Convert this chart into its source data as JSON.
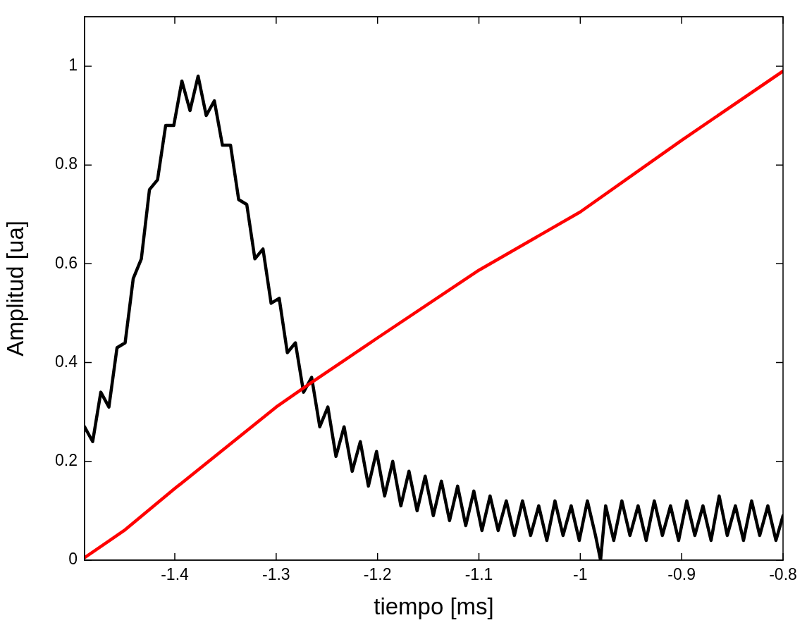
{
  "chart_data": {
    "type": "line",
    "xlabel": "tiempo [ms]",
    "ylabel": "Amplitud [ua]",
    "xlim": [
      -1.489,
      -0.8
    ],
    "xticks": [
      -1.4,
      -1.3,
      -1.2,
      -1.1,
      -1,
      -0.9,
      -0.8
    ],
    "ylim": [
      0,
      1.1
    ],
    "yticks": [
      0,
      0.2,
      0.4,
      0.6,
      0.8,
      1
    ],
    "grid": false,
    "legend": false,
    "marker": "none",
    "line_style": "solid",
    "series": [
      {
        "color": "#ff0000",
        "x": [
          -1.489,
          -1.45,
          -1.4,
          -1.3,
          -1.267,
          -1.2,
          -1.1,
          -1.0,
          -0.9,
          -0.8
        ],
        "values": [
          0.005,
          0.06,
          0.145,
          0.31,
          0.357,
          0.45,
          0.587,
          0.705,
          0.85,
          0.99
        ]
      },
      {
        "color": "#000000",
        "x": [
          -1.489,
          -1.481,
          -1.473,
          -1.465,
          -1.457,
          -1.449,
          -1.441,
          -1.433,
          -1.425,
          -1.417,
          -1.409,
          -1.401,
          -1.393,
          -1.385,
          -1.377,
          -1.369,
          -1.361,
          -1.353,
          -1.345,
          -1.337,
          -1.329,
          -1.321,
          -1.313,
          -1.305,
          -1.297,
          -1.289,
          -1.281,
          -1.273,
          -1.265,
          -1.257,
          -1.249,
          -1.241,
          -1.233,
          -1.225,
          -1.217,
          -1.209,
          -1.201,
          -1.193,
          -1.185,
          -1.177,
          -1.169,
          -1.161,
          -1.153,
          -1.145,
          -1.137,
          -1.129,
          -1.121,
          -1.113,
          -1.105,
          -1.097,
          -1.089,
          -1.081,
          -1.073,
          -1.065,
          -1.057,
          -1.049,
          -1.041,
          -1.033,
          -1.025,
          -1.017,
          -1.009,
          -1.001,
          -0.993,
          -0.985,
          -0.98,
          -0.975,
          -0.967,
          -0.959,
          -0.951,
          -0.943,
          -0.935,
          -0.927,
          -0.919,
          -0.911,
          -0.903,
          -0.895,
          -0.887,
          -0.879,
          -0.871,
          -0.863,
          -0.855,
          -0.847,
          -0.839,
          -0.831,
          -0.823,
          -0.815,
          -0.807,
          -0.8
        ],
        "values": [
          0.27,
          0.24,
          0.34,
          0.31,
          0.43,
          0.44,
          0.57,
          0.61,
          0.75,
          0.77,
          0.88,
          0.88,
          0.97,
          0.91,
          0.98,
          0.9,
          0.93,
          0.84,
          0.84,
          0.73,
          0.72,
          0.61,
          0.63,
          0.52,
          0.53,
          0.42,
          0.44,
          0.34,
          0.37,
          0.27,
          0.31,
          0.21,
          0.27,
          0.18,
          0.24,
          0.15,
          0.22,
          0.13,
          0.2,
          0.11,
          0.18,
          0.1,
          0.17,
          0.09,
          0.16,
          0.08,
          0.15,
          0.07,
          0.14,
          0.06,
          0.13,
          0.06,
          0.12,
          0.05,
          0.12,
          0.05,
          0.11,
          0.04,
          0.12,
          0.05,
          0.11,
          0.04,
          0.12,
          0.05,
          0,
          0.11,
          0.04,
          0.12,
          0.05,
          0.11,
          0.04,
          0.12,
          0.05,
          0.11,
          0.04,
          0.12,
          0.05,
          0.11,
          0.04,
          0.13,
          0.05,
          0.11,
          0.04,
          0.12,
          0.05,
          0.11,
          0.04,
          0.09
        ]
      }
    ]
  }
}
